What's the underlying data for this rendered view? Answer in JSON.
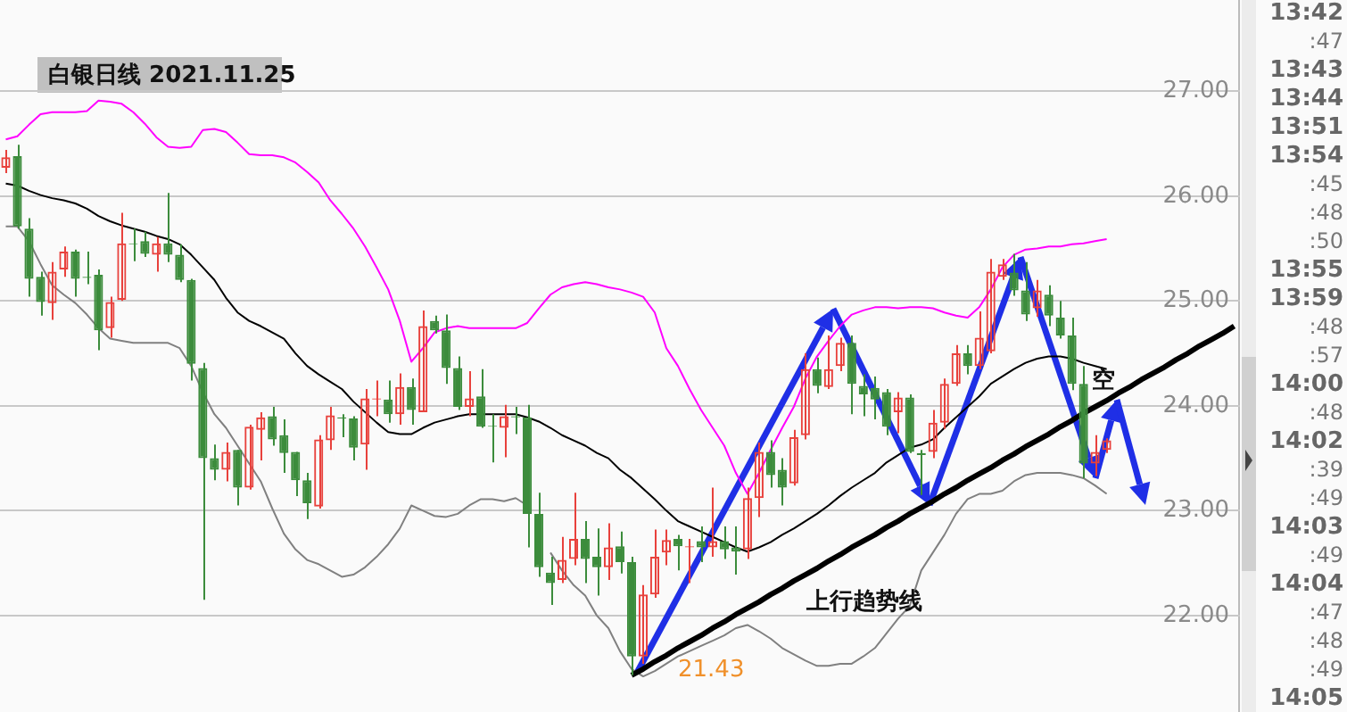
{
  "chart_data": {
    "type": "candlestick",
    "title": "白银日线 2021.11.25",
    "categories": [
      null,
      null,
      null,
      null,
      null,
      null,
      null,
      null,
      null,
      null,
      null,
      null,
      null,
      null,
      null,
      null,
      null,
      null,
      null,
      null,
      null,
      null,
      null,
      null,
      null,
      null,
      null,
      null,
      null,
      null,
      null,
      null,
      null,
      null,
      null,
      null,
      null,
      null,
      null,
      null,
      null,
      null,
      null,
      null,
      null,
      null,
      null,
      null,
      null,
      null,
      null,
      null,
      null,
      null,
      null,
      null,
      null,
      null,
      null,
      null,
      null,
      null,
      null,
      null,
      null,
      null,
      null,
      null,
      null,
      null,
      null,
      null,
      null,
      null,
      null,
      null,
      null,
      null,
      null,
      null,
      null,
      null,
      null,
      null,
      null,
      null,
      null,
      null,
      null,
      null,
      null,
      null,
      null,
      null,
      null,
      null,
      null,
      null,
      null,
      null,
      null,
      null,
      null,
      null,
      null,
      null,
      null
    ],
    "ohlc": [
      [
        26.27,
        26.44,
        26.22,
        26.37
      ],
      [
        26.38,
        26.49,
        25.69,
        25.71
      ],
      [
        25.69,
        25.79,
        25.04,
        25.21
      ],
      [
        25.23,
        25.28,
        24.86,
        24.99
      ],
      [
        24.98,
        25.37,
        24.82,
        25.28
      ],
      [
        25.3,
        25.52,
        25.23,
        25.47
      ],
      [
        25.47,
        25.49,
        25.04,
        25.21
      ],
      [
        25.23,
        25.47,
        25.16,
        25.22
      ],
      [
        25.25,
        25.3,
        24.53,
        24.72
      ],
      [
        24.74,
        25.04,
        24.65,
        24.99
      ],
      [
        25.01,
        25.84,
        25.0,
        25.55
      ],
      [
        25.55,
        25.69,
        25.38,
        25.54
      ],
      [
        25.57,
        25.66,
        25.42,
        25.45
      ],
      [
        25.44,
        25.61,
        25.28,
        25.55
      ],
      [
        25.55,
        26.03,
        25.37,
        25.44
      ],
      [
        25.44,
        25.54,
        25.18,
        25.2
      ],
      [
        25.2,
        25.21,
        24.24,
        24.4
      ],
      [
        24.36,
        24.41,
        22.15,
        23.5
      ],
      [
        23.5,
        23.63,
        23.29,
        23.39
      ],
      [
        23.39,
        23.65,
        23.28,
        23.56
      ],
      [
        23.58,
        23.58,
        23.05,
        23.22
      ],
      [
        23.22,
        23.82,
        23.2,
        23.8
      ],
      [
        23.77,
        23.94,
        23.48,
        23.89
      ],
      [
        23.9,
        23.99,
        23.62,
        23.68
      ],
      [
        23.72,
        23.87,
        23.36,
        23.55
      ],
      [
        23.56,
        23.56,
        23.14,
        23.29
      ],
      [
        23.29,
        23.36,
        22.92,
        23.07
      ],
      [
        23.04,
        23.72,
        23.02,
        23.68
      ],
      [
        23.67,
        23.99,
        23.58,
        23.91
      ],
      [
        23.89,
        23.92,
        23.7,
        23.88
      ],
      [
        23.88,
        23.9,
        23.48,
        23.6
      ],
      [
        23.63,
        24.16,
        23.39,
        24.07
      ],
      [
        24.06,
        24.24,
        23.9,
        24.07
      ],
      [
        24.06,
        24.24,
        23.84,
        23.92
      ],
      [
        23.92,
        24.31,
        23.82,
        24.18
      ],
      [
        24.18,
        24.26,
        23.82,
        23.96
      ],
      [
        23.94,
        24.91,
        23.94,
        24.76
      ],
      [
        24.81,
        24.86,
        24.69,
        24.72
      ],
      [
        24.72,
        24.87,
        24.21,
        24.36
      ],
      [
        24.36,
        24.47,
        23.96,
        23.99
      ],
      [
        23.99,
        24.33,
        23.9,
        24.07
      ],
      [
        24.09,
        24.35,
        23.79,
        23.8
      ],
      [
        23.81,
        23.92,
        23.46,
        23.8
      ],
      [
        23.79,
        24.01,
        23.51,
        23.9
      ],
      [
        23.9,
        23.99,
        23.73,
        23.89
      ],
      [
        23.89,
        24.01,
        22.65,
        22.97
      ],
      [
        22.97,
        23.17,
        22.37,
        22.46
      ],
      [
        22.41,
        22.56,
        22.1,
        22.31
      ],
      [
        22.34,
        22.75,
        22.31,
        22.53
      ],
      [
        22.54,
        23.17,
        22.48,
        22.73
      ],
      [
        22.73,
        22.9,
        22.31,
        22.54
      ],
      [
        22.56,
        22.83,
        22.19,
        22.46
      ],
      [
        22.46,
        22.88,
        22.34,
        22.65
      ],
      [
        22.66,
        22.8,
        22.4,
        22.51
      ],
      [
        22.51,
        22.56,
        21.43,
        21.61
      ],
      [
        21.61,
        22.29,
        21.54,
        22.2
      ],
      [
        22.2,
        22.82,
        22.17,
        22.56
      ],
      [
        22.6,
        22.82,
        22.48,
        22.72
      ],
      [
        22.73,
        22.77,
        22.43,
        22.66
      ],
      [
        22.65,
        22.73,
        22.31,
        22.66
      ],
      [
        22.71,
        22.85,
        22.51,
        22.65
      ],
      [
        22.65,
        23.22,
        22.56,
        22.71
      ],
      [
        22.71,
        22.85,
        22.54,
        22.63
      ],
      [
        22.65,
        22.85,
        22.39,
        22.61
      ],
      [
        22.63,
        23.22,
        22.54,
        23.12
      ],
      [
        23.12,
        23.65,
        22.94,
        23.56
      ],
      [
        23.56,
        23.67,
        23.22,
        23.34
      ],
      [
        23.39,
        23.5,
        23.05,
        23.22
      ],
      [
        23.26,
        23.77,
        23.24,
        23.7
      ],
      [
        23.72,
        24.5,
        23.68,
        24.35
      ],
      [
        24.35,
        24.46,
        24.12,
        24.19
      ],
      [
        24.18,
        24.67,
        24.16,
        24.35
      ],
      [
        24.38,
        24.65,
        24.33,
        24.6
      ],
      [
        24.6,
        24.67,
        23.92,
        24.21
      ],
      [
        24.19,
        24.3,
        23.9,
        24.11
      ],
      [
        24.17,
        24.28,
        23.87,
        24.06
      ],
      [
        24.13,
        24.16,
        23.72,
        23.8
      ],
      [
        23.94,
        24.13,
        23.74,
        24.08
      ],
      [
        24.08,
        24.11,
        23.55,
        23.56
      ],
      [
        23.55,
        23.58,
        23.15,
        23.53
      ],
      [
        23.56,
        23.96,
        23.5,
        23.84
      ],
      [
        23.84,
        24.26,
        23.78,
        24.21
      ],
      [
        24.21,
        24.58,
        24.19,
        24.5
      ],
      [
        24.5,
        24.58,
        24.3,
        24.38
      ],
      [
        24.38,
        24.9,
        24.35,
        24.65
      ],
      [
        24.52,
        25.4,
        24.5,
        25.28
      ],
      [
        25.23,
        25.4,
        25.2,
        25.35
      ],
      [
        25.27,
        25.45,
        25.05,
        25.1
      ],
      [
        25.1,
        25.37,
        24.81,
        24.87
      ],
      [
        24.93,
        25.2,
        24.85,
        25.1
      ],
      [
        25.06,
        25.15,
        24.76,
        24.86
      ],
      [
        24.84,
        25.0,
        24.64,
        24.67
      ],
      [
        24.67,
        24.84,
        24.15,
        24.21
      ],
      [
        24.21,
        24.38,
        23.31,
        23.45
      ],
      [
        23.45,
        23.72,
        23.33,
        23.56
      ],
      [
        23.58,
        23.69,
        23.55,
        23.67
      ],
      null,
      null,
      null,
      null,
      null,
      null,
      null,
      null,
      null,
      null,
      null
    ],
    "colors": [
      "#e8413c",
      "#3c8c3c",
      "#3c8c3c",
      "#3c8c3c",
      "#e8413c",
      "#e8413c",
      "#3c8c3c",
      "#3c8c3c",
      "#3c8c3c",
      "#e8413c",
      "#e8413c",
      "#3c8c3c",
      "#3c8c3c",
      "#e8413c",
      "#3c8c3c",
      "#3c8c3c",
      "#3c8c3c",
      "#3c8c3c",
      "#3c8c3c",
      "#e8413c",
      "#3c8c3c",
      "#e8413c",
      "#e8413c",
      "#3c8c3c",
      "#3c8c3c",
      "#3c8c3c",
      "#3c8c3c",
      "#e8413c",
      "#e8413c",
      "#3c8c3c",
      "#3c8c3c",
      "#e8413c",
      "#e8413c",
      "#3c8c3c",
      "#e8413c",
      "#3c8c3c",
      "#e8413c",
      "#3c8c3c",
      "#3c8c3c",
      "#3c8c3c",
      "#e8413c",
      "#3c8c3c",
      "#3c8c3c",
      "#e8413c",
      "#3c8c3c",
      "#3c8c3c",
      "#3c8c3c",
      "#3c8c3c",
      "#e8413c",
      "#e8413c",
      "#3c8c3c",
      "#3c8c3c",
      "#e8413c",
      "#3c8c3c",
      "#3c8c3c",
      "#e8413c",
      "#e8413c",
      "#e8413c",
      "#3c8c3c",
      "#e8413c",
      "#3c8c3c",
      "#e8413c",
      "#3c8c3c",
      "#3c8c3c",
      "#e8413c",
      "#e8413c",
      "#3c8c3c",
      "#3c8c3c",
      "#e8413c",
      "#e8413c",
      "#3c8c3c",
      "#e8413c",
      "#e8413c",
      "#3c8c3c",
      "#3c8c3c",
      "#3c8c3c",
      "#3c8c3c",
      "#e8413c",
      "#3c8c3c",
      "#3c8c3c",
      "#e8413c",
      "#e8413c",
      "#e8413c",
      "#3c8c3c",
      "#e8413c",
      "#e8413c",
      "#e8413c",
      "#3c8c3c",
      "#3c8c3c",
      "#e8413c",
      "#3c8c3c",
      "#3c8c3c",
      "#3c8c3c",
      "#3c8c3c",
      "#e8413c",
      "#e8413c",
      null,
      null,
      null,
      null,
      null,
      null,
      null,
      null,
      null,
      null,
      null
    ],
    "series": [
      {
        "type": "line",
        "color": "#ff00ff",
        "values": [
          26.54,
          26.57,
          26.68,
          26.78,
          26.8,
          26.8,
          26.8,
          26.81,
          26.91,
          26.9,
          26.88,
          26.8,
          26.69,
          26.56,
          26.47,
          26.46,
          26.47,
          26.63,
          26.64,
          26.61,
          26.51,
          26.4,
          26.39,
          26.39,
          26.37,
          26.32,
          26.23,
          26.13,
          25.96,
          25.83,
          25.69,
          25.52,
          25.32,
          25.11,
          24.81,
          24.42,
          24.55,
          24.7,
          24.74,
          24.76,
          24.74,
          24.74,
          24.74,
          24.74,
          24.74,
          24.79,
          24.93,
          25.06,
          25.13,
          25.16,
          25.18,
          25.16,
          25.13,
          25.11,
          25.08,
          25.04,
          24.89,
          24.55,
          24.38,
          24.16,
          23.96,
          23.79,
          23.62,
          23.36,
          23.16,
          23.36,
          23.58,
          23.79,
          23.99,
          24.26,
          24.47,
          24.62,
          24.76,
          24.87,
          24.91,
          24.94,
          24.94,
          24.93,
          24.94,
          24.94,
          24.93,
          24.89,
          24.86,
          24.84,
          24.94,
          25.11,
          25.32,
          25.44,
          25.49,
          25.5,
          25.52,
          25.52,
          25.54,
          25.55,
          25.57,
          25.59,
          null,
          null,
          null,
          null,
          null,
          null,
          null,
          null,
          null,
          null,
          null
        ]
      },
      {
        "type": "line",
        "color": "#000000",
        "values": [
          26.12,
          26.1,
          26.05,
          26.01,
          25.98,
          25.96,
          25.93,
          25.88,
          25.81,
          25.76,
          25.72,
          25.69,
          25.66,
          25.62,
          25.59,
          25.54,
          25.44,
          25.32,
          25.2,
          25.03,
          24.89,
          24.81,
          24.76,
          24.7,
          24.64,
          24.5,
          24.38,
          24.3,
          24.23,
          24.16,
          24.04,
          23.94,
          23.84,
          23.75,
          23.73,
          23.73,
          23.79,
          23.84,
          23.87,
          23.9,
          23.92,
          23.92,
          23.92,
          23.92,
          23.92,
          23.89,
          23.85,
          23.79,
          23.72,
          23.67,
          23.62,
          23.55,
          23.5,
          23.39,
          23.31,
          23.21,
          23.11,
          23.0,
          22.9,
          22.85,
          22.8,
          22.75,
          22.7,
          22.65,
          22.61,
          22.65,
          22.7,
          22.77,
          22.83,
          22.9,
          22.97,
          23.05,
          23.14,
          23.22,
          23.29,
          23.36,
          23.46,
          23.53,
          23.6,
          23.63,
          23.68,
          23.79,
          23.89,
          23.99,
          24.09,
          24.21,
          24.28,
          24.35,
          24.41,
          24.45,
          24.47,
          24.47,
          24.45,
          24.41,
          24.38,
          24.35,
          null,
          null,
          null,
          null,
          null,
          null,
          null,
          null,
          null,
          null,
          null
        ]
      },
      {
        "type": "line",
        "color": "#808080",
        "values": [
          25.71,
          25.71,
          25.57,
          25.35,
          25.15,
          25.06,
          24.98,
          24.87,
          24.74,
          24.64,
          24.62,
          24.6,
          24.6,
          24.6,
          24.6,
          24.55,
          24.38,
          24.13,
          23.92,
          23.79,
          23.62,
          23.45,
          23.28,
          23.02,
          22.78,
          22.63,
          22.53,
          22.49,
          22.43,
          22.37,
          22.39,
          22.46,
          22.56,
          22.68,
          22.83,
          23.05,
          23.0,
          22.95,
          22.94,
          22.97,
          23.05,
          23.11,
          23.11,
          23.09,
          23.12,
          23.05,
          null,
          22.6,
          22.43,
          22.29,
          22.19,
          22.0,
          21.88,
          21.66,
          21.49,
          21.42,
          21.47,
          21.54,
          21.61,
          21.66,
          21.71,
          21.76,
          21.81,
          21.88,
          21.91,
          21.85,
          21.78,
          21.69,
          21.63,
          21.57,
          21.52,
          21.52,
          21.54,
          21.54,
          21.61,
          21.69,
          21.83,
          21.97,
          22.09,
          22.43,
          22.6,
          22.77,
          22.97,
          23.11,
          23.16,
          23.16,
          23.19,
          23.28,
          23.34,
          23.36,
          23.36,
          23.36,
          23.34,
          23.31,
          23.24,
          23.16,
          null,
          null,
          null,
          null,
          null,
          null,
          null,
          null,
          null,
          null,
          null
        ]
      },
      {
        "type": "line",
        "color": "#000000",
        "values": [
          null,
          null,
          null,
          null,
          null,
          null,
          null,
          null,
          null,
          null,
          null,
          null,
          null,
          null,
          null,
          null,
          null,
          null,
          null,
          null,
          null,
          null,
          null,
          null,
          null,
          null,
          null,
          null,
          null,
          null,
          null,
          null,
          null,
          null,
          null,
          null,
          null,
          null,
          null,
          null,
          null,
          null,
          null,
          null,
          null,
          null,
          null,
          null,
          null,
          null,
          null,
          null,
          null,
          null,
          21.43,
          21.49,
          21.56,
          21.62,
          21.69,
          21.75,
          21.81,
          21.88,
          21.94,
          22.01,
          22.07,
          22.13,
          22.2,
          22.26,
          22.33,
          22.39,
          22.45,
          22.52,
          22.58,
          22.65,
          22.71,
          22.77,
          22.84,
          22.9,
          22.97,
          23.03,
          23.09,
          23.16,
          23.22,
          23.29,
          23.35,
          23.41,
          23.48,
          23.54,
          23.61,
          23.67,
          23.73,
          23.8,
          23.86,
          23.93,
          23.99,
          24.05,
          24.12,
          24.18,
          24.25,
          24.31,
          24.37,
          24.44,
          24.5,
          24.57,
          24.63,
          24.69,
          24.76
        ]
      }
    ],
    "ylim": [
      21.08,
      27.87
    ],
    "yticks": [
      {
        "value": 22,
        "label": "22.00"
      },
      {
        "value": 23,
        "label": "23.00"
      },
      {
        "value": 24,
        "label": "24.00"
      },
      {
        "value": 25,
        "label": "25.00"
      },
      {
        "value": 26,
        "label": "26.00"
      },
      {
        "value": 27,
        "label": "27.00"
      }
    ],
    "grid": "y",
    "tick_labels": "y",
    "annotations": [
      "21.43",
      "上行趋势线",
      "空",
      "13:42",
      ":47",
      "13:43",
      "13:44",
      "13:51",
      "13:54",
      ":45",
      ":48",
      ":50",
      "13:55",
      "13:59",
      ":48",
      ":57",
      "14:00",
      ":48",
      "14:02",
      ":39",
      ":49",
      "14:03",
      ":49",
      "14:04",
      ":47",
      ":48",
      ":49",
      "14:05"
    ]
  }
}
